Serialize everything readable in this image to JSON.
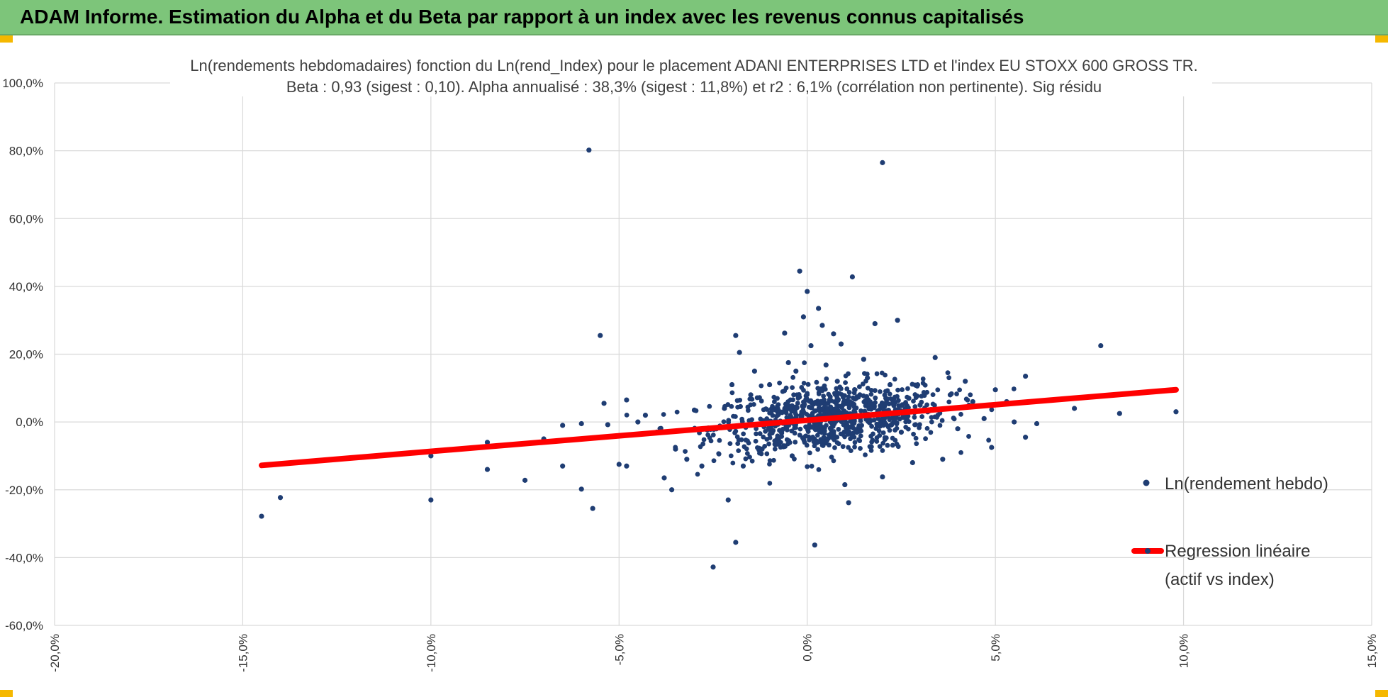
{
  "header": {
    "title": "ADAM Informe. Estimation du Alpha et du Beta par rapport à un index avec les revenus connus capitalisés"
  },
  "colors": {
    "header_bg": "#7dc57a",
    "accent_corner": "#f5b800",
    "points": "#1f3d73",
    "regression": "#ff0000",
    "grid": "#d9d9d9"
  },
  "chart_data": {
    "type": "scatter",
    "title_line1": "Ln(rendements hebdomadaires) fonction du Ln(rend_Index) pour le placement ADANI ENTERPRISES LTD et l'index EU STOXX 600 GROSS TR.",
    "title_line2": "Beta : 0,93 (sigest : 0,10).  Alpha annualisé : 38,3% (sigest : 11,8%) et r2 : 6,1% (corrélation non pertinente). Sig résidu",
    "xlim": [
      -20,
      15
    ],
    "ylim": [
      -60,
      100
    ],
    "x_ticks": [
      "-20,0%",
      "-15,0%",
      "-10,0%",
      "-5,0%",
      "0,0%",
      "5,0%",
      "10,0%",
      "15,0%"
    ],
    "y_ticks": [
      "100,0%",
      "80,0%",
      "60,0%",
      "40,0%",
      "20,0%",
      "0,0%",
      "-20,0%",
      "-40,0%",
      "-60,0%"
    ],
    "grid": true,
    "legend_position": "right",
    "series": [
      {
        "name": "Ln(rendement hebdo)",
        "kind": "scatter",
        "color": "#1f3d73",
        "points": [
          [
            -14.5,
            -27.8
          ],
          [
            -14.0,
            -22.3
          ],
          [
            -10.0,
            -23.0
          ],
          [
            -10.0,
            -10.0
          ],
          [
            -8.5,
            -14.0
          ],
          [
            -8.5,
            -6.0
          ],
          [
            -7.5,
            -17.2
          ],
          [
            -7.0,
            -5.0
          ],
          [
            -6.5,
            -13.0
          ],
          [
            -6.5,
            -1.0
          ],
          [
            -6.0,
            -19.8
          ],
          [
            -6.0,
            -0.5
          ],
          [
            -5.8,
            80.2
          ],
          [
            -5.7,
            -25.5
          ],
          [
            -5.5,
            25.5
          ],
          [
            -5.4,
            5.5
          ],
          [
            -5.3,
            -0.8
          ],
          [
            -5.0,
            -12.5
          ],
          [
            -4.8,
            -13.0
          ],
          [
            -4.8,
            6.5
          ],
          [
            -4.5,
            0.0
          ],
          [
            -4.3,
            2.0
          ],
          [
            -4.0,
            -3.0
          ],
          [
            -3.8,
            -16.5
          ],
          [
            -3.6,
            -20.0
          ],
          [
            -3.5,
            -8.0
          ],
          [
            -3.2,
            -11.0
          ],
          [
            -3.0,
            3.5
          ],
          [
            -2.8,
            -13.0
          ],
          [
            -2.5,
            -42.8
          ],
          [
            -2.2,
            4.0
          ],
          [
            -2.1,
            -23.0
          ],
          [
            -2.0,
            11.0
          ],
          [
            -1.9,
            -35.5
          ],
          [
            -1.9,
            25.5
          ],
          [
            -1.8,
            20.5
          ],
          [
            -1.7,
            -13.0
          ],
          [
            -1.5,
            8.0
          ],
          [
            -1.4,
            15.0
          ],
          [
            -1.2,
            -8.0
          ],
          [
            -1.0,
            11.0
          ],
          [
            -0.8,
            -5.0
          ],
          [
            -0.6,
            26.2
          ],
          [
            -0.5,
            17.5
          ],
          [
            -0.4,
            -10.0
          ],
          [
            -0.3,
            15.0
          ],
          [
            -0.2,
            44.5
          ],
          [
            -0.1,
            31.0
          ],
          [
            0.0,
            38.5
          ],
          [
            0.1,
            22.5
          ],
          [
            0.2,
            -36.3
          ],
          [
            0.3,
            33.5
          ],
          [
            0.4,
            28.5
          ],
          [
            0.5,
            16.8
          ],
          [
            0.7,
            26.0
          ],
          [
            0.8,
            12.0
          ],
          [
            0.9,
            23.0
          ],
          [
            1.0,
            -18.5
          ],
          [
            1.1,
            -23.8
          ],
          [
            1.2,
            42.8
          ],
          [
            1.4,
            8.0
          ],
          [
            1.5,
            18.5
          ],
          [
            1.6,
            13.0
          ],
          [
            1.8,
            29.0
          ],
          [
            2.0,
            76.5
          ],
          [
            2.0,
            -16.2
          ],
          [
            2.2,
            11.0
          ],
          [
            2.4,
            30.0
          ],
          [
            2.5,
            -3.0
          ],
          [
            2.7,
            7.0
          ],
          [
            2.8,
            -12.0
          ],
          [
            3.0,
            5.0
          ],
          [
            3.2,
            3.0
          ],
          [
            3.4,
            19.0
          ],
          [
            3.6,
            -11.0
          ],
          [
            3.8,
            8.0
          ],
          [
            4.0,
            -2.0
          ],
          [
            4.2,
            12.0
          ],
          [
            4.4,
            6.0
          ],
          [
            4.7,
            1.0
          ],
          [
            4.9,
            -7.5
          ],
          [
            5.0,
            9.5
          ],
          [
            5.3,
            6.0
          ],
          [
            5.5,
            0.0
          ],
          [
            5.8,
            13.5
          ],
          [
            5.8,
            -4.5
          ],
          [
            6.1,
            -0.5
          ],
          [
            7.1,
            4.0
          ],
          [
            7.8,
            22.5
          ],
          [
            8.2,
            8.0
          ],
          [
            8.3,
            2.5
          ],
          [
            9.8,
            3.0
          ]
        ]
      },
      {
        "name": "Regression linéaire",
        "name_line2": "(actif vs index)",
        "kind": "line",
        "color": "#ff0000",
        "points": [
          [
            -14.5,
            -12.8
          ],
          [
            9.8,
            9.5
          ]
        ]
      }
    ]
  }
}
